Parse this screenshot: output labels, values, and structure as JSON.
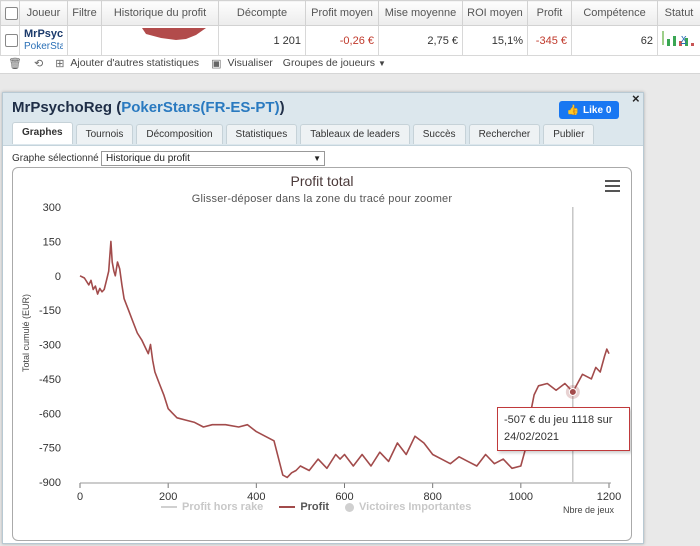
{
  "table": {
    "headers": [
      "",
      "Joueur",
      "Filtre",
      "Historique du profit",
      "Décompte",
      "Profit moyen",
      "Mise moyenne",
      "ROI moyen",
      "Profit",
      "Compétence",
      "Statut"
    ],
    "row": {
      "player_name": "MrPsycho",
      "player_site": "PokerStar",
      "decompte": "1 201",
      "profit_moyen": "-0,26 €",
      "mise_moyenne": "2,75 €",
      "roi_moyen": "15,1%",
      "profit": "-345 €",
      "competence": "62",
      "remove": "x"
    }
  },
  "toolbar": {
    "add_stats": "Ajouter d'autres statistiques",
    "visualize": "Visualiser",
    "groups": "Groupes de joueurs"
  },
  "popup": {
    "title_name": "MrPsychoReg",
    "title_site": "PokerStars(FR-ES-PT)",
    "like_label": "Like 0",
    "close": "×",
    "tabs": [
      "Graphes",
      "Tournois",
      "Décomposition",
      "Statistiques",
      "Tableaux de leaders",
      "Succès",
      "Rechercher",
      "Publier"
    ],
    "active_tab": 0,
    "selected_graph_label": "Graphe sélectionné :",
    "selected_graph_value": "Historique du profit"
  },
  "tooltip": {
    "line1": "-507 € du jeu 1118 sur",
    "line2": "24/02/2021"
  },
  "colors": {
    "line": "#a24b4b",
    "accent": "#2a7ac0",
    "like": "#1877f2"
  },
  "chart_data": {
    "type": "line",
    "title": "Profit total",
    "subtitle": "Glisser-déposer dans la zone du tracé pour zoomer",
    "xlabel": "Nbre de jeux",
    "ylabel": "Total cumulé (EUR)",
    "xlim": [
      0,
      1201
    ],
    "ylim": [
      -900,
      300
    ],
    "x_ticks": [
      0,
      200,
      400,
      600,
      800,
      1000,
      1200
    ],
    "y_ticks": [
      300,
      150,
      0,
      -150,
      -300,
      -450,
      -600,
      -750,
      -900
    ],
    "legend": [
      "Profit hors rake",
      "Profit",
      "Victoires Importantes"
    ],
    "legend_active": [
      false,
      true,
      false
    ],
    "highlight": {
      "x": 1118,
      "y": -507
    },
    "series": [
      {
        "name": "Profit",
        "x": [
          0,
          10,
          20,
          25,
          30,
          35,
          40,
          45,
          50,
          55,
          60,
          65,
          70,
          73,
          77,
          80,
          85,
          90,
          95,
          100,
          110,
          120,
          130,
          140,
          150,
          155,
          160,
          165,
          170,
          180,
          190,
          200,
          210,
          220,
          240,
          260,
          280,
          300,
          330,
          360,
          380,
          400,
          420,
          440,
          460,
          470,
          480,
          490,
          500,
          520,
          540,
          560,
          580,
          590,
          600,
          620,
          640,
          660,
          680,
          700,
          720,
          740,
          760,
          780,
          800,
          820,
          840,
          860,
          880,
          900,
          920,
          940,
          960,
          980,
          1000,
          1010,
          1020,
          1030,
          1040,
          1060,
          1080,
          1100,
          1118,
          1140,
          1160,
          1170,
          1180,
          1190,
          1195,
          1200
        ],
        "y": [
          0,
          -10,
          -40,
          -20,
          -60,
          -45,
          -80,
          -55,
          -70,
          -60,
          -20,
          20,
          150,
          60,
          20,
          0,
          60,
          30,
          -40,
          -100,
          -150,
          -200,
          -250,
          -280,
          -320,
          -340,
          -300,
          -370,
          -420,
          -470,
          -520,
          -580,
          -600,
          -620,
          -630,
          -640,
          -660,
          -650,
          -650,
          -660,
          -650,
          -680,
          -700,
          -720,
          -870,
          -880,
          -860,
          -850,
          -830,
          -850,
          -800,
          -840,
          -780,
          -800,
          -780,
          -830,
          -780,
          -830,
          -770,
          -810,
          -730,
          -780,
          -700,
          -730,
          -780,
          -800,
          -820,
          -790,
          -810,
          -830,
          -780,
          -820,
          -800,
          -840,
          -830,
          -760,
          -620,
          -520,
          -480,
          -470,
          -500,
          -470,
          -507,
          -430,
          -450,
          -400,
          -420,
          -350,
          -320,
          -340
        ]
      }
    ]
  }
}
